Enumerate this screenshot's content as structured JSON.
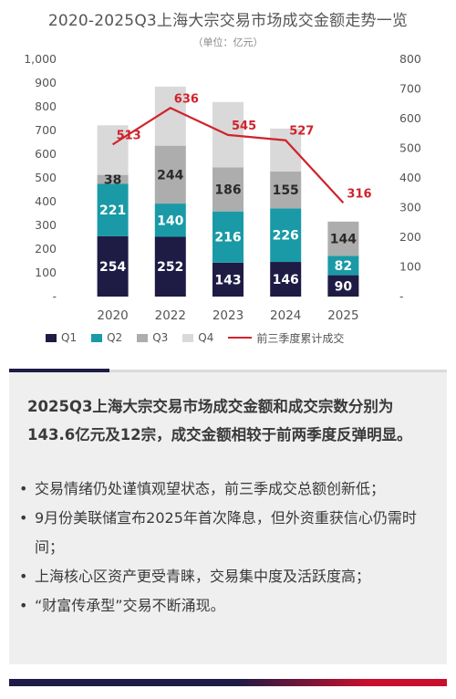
{
  "page": {
    "title": "2020-2025Q3上海大宗交易市场成交金额走势一览",
    "subtitle": "（单位：亿元）"
  },
  "chart_data": {
    "type": "bar",
    "categories": [
      "2020",
      "2022",
      "2023",
      "2024",
      "2025"
    ],
    "series": [
      {
        "name": "Q1",
        "color": "#1e1b45",
        "values": [
          254,
          252,
          143,
          146,
          90
        ],
        "labels": [
          "254",
          "252",
          "143",
          "146",
          "90"
        ]
      },
      {
        "name": "Q2",
        "color": "#1a9aa6",
        "values": [
          221,
          140,
          216,
          226,
          82
        ],
        "labels": [
          "221",
          "140",
          "216",
          "226",
          "82"
        ]
      },
      {
        "name": "Q3",
        "color": "#adadad",
        "values": [
          38,
          244,
          186,
          155,
          144
        ],
        "labels": [
          "38",
          "244",
          "186",
          "155",
          "144"
        ]
      },
      {
        "name": "Q4",
        "color": "#d9d9d9",
        "values": [
          209,
          249,
          275,
          181,
          0
        ],
        "labels": [
          "",
          "",
          "",
          "",
          ""
        ]
      }
    ],
    "line": {
      "name": "前三季度累计成交",
      "color": "#d0232c",
      "values": [
        513,
        636,
        545,
        527,
        316
      ],
      "labels": [
        "513",
        "636",
        "545",
        "527",
        "316"
      ]
    },
    "y_left": {
      "range": [
        0,
        1000
      ],
      "ticks": [
        "-",
        "100",
        "200",
        "300",
        "400",
        "500",
        "600",
        "700",
        "800",
        "900",
        "1,000"
      ],
      "tick_values": [
        0,
        100,
        200,
        300,
        400,
        500,
        600,
        700,
        800,
        900,
        1000
      ]
    },
    "y_right": {
      "range": [
        0,
        800
      ],
      "ticks": [
        "-",
        "100",
        "200",
        "300",
        "400",
        "500",
        "600",
        "700",
        "800"
      ],
      "tick_values": [
        0,
        100,
        200,
        300,
        400,
        500,
        600,
        700,
        800
      ]
    },
    "grid": false,
    "legend": "bottom"
  },
  "legend": {
    "items": [
      {
        "label": "Q1",
        "color": "#1e1b45"
      },
      {
        "label": "Q2",
        "color": "#1a9aa6"
      },
      {
        "label": "Q3",
        "color": "#adadad"
      },
      {
        "label": "Q4",
        "color": "#d9d9d9"
      }
    ],
    "line_label": "前三季度累计成交",
    "line_color": "#d0232c"
  },
  "summary": {
    "headline": "2025Q3上海大宗交易市场成交金额和成交宗数分别为143.6亿元及12宗，成交金额相较于前两季度反弹明显。",
    "bullet_symbol": "•",
    "bullets": [
      "交易情绪仍处谨慎观望状态，前三季成交总额创新低；",
      "9月份美联储宣布2025年首次降息，但外资重获信心仍需时间；",
      "上海核心区资产更受青睐，交易集中度及活跃度高；",
      "“财富传承型”交易不断涌现。"
    ]
  },
  "colors": {
    "navy": "#1e1b45",
    "red": "#c8102e",
    "panel": "#efefef"
  }
}
